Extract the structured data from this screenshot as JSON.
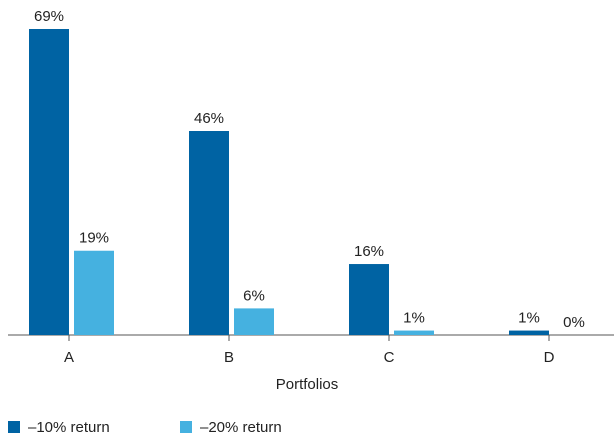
{
  "chart_data": {
    "type": "bar",
    "x_label": "Portfolios",
    "categories": [
      "A",
      "B",
      "C",
      "D"
    ],
    "series": [
      {
        "name": "–10% return",
        "color": "#0063a3",
        "values": [
          69,
          46,
          16,
          1
        ],
        "value_labels": [
          "69%",
          "46%",
          "16%",
          "1%"
        ]
      },
      {
        "name": "–20% return",
        "color": "#45b1e0",
        "values": [
          19,
          6,
          1,
          0
        ],
        "value_labels": [
          "19%",
          "6%",
          "1%",
          "0%"
        ]
      }
    ]
  }
}
